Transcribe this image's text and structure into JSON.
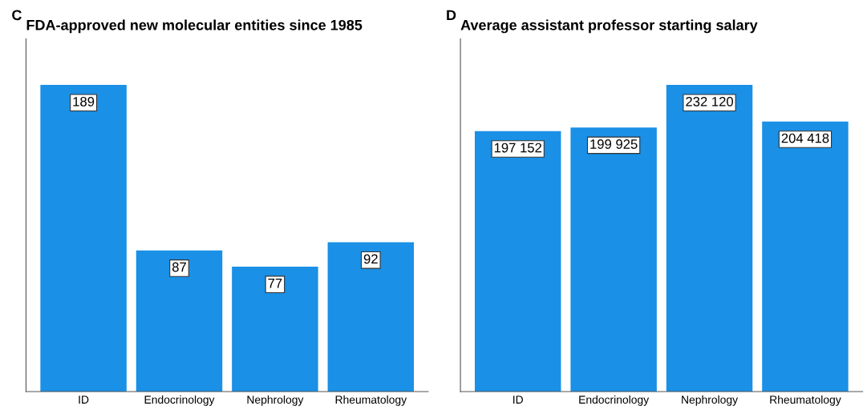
{
  "chart_data": [
    {
      "type": "bar",
      "title": "FDA-approved new molecular entities since 1985",
      "annotations": [
        "C"
      ],
      "categories": [
        "ID",
        "Endocrinology",
        "Nephrology",
        "Rheumatology"
      ],
      "values": [
        189,
        87,
        77,
        92
      ],
      "color": "#1a90e6",
      "data_labels": true,
      "tick_labels": "x",
      "grid": false,
      "legend": false
    },
    {
      "type": "bar",
      "title": "Average assistant professor starting salary",
      "annotations": [
        "D"
      ],
      "categories": [
        "ID",
        "Endocrinology",
        "Nephrology",
        "Rheumatology"
      ],
      "values": [
        197152,
        199925,
        232120,
        204418
      ],
      "value_labels": [
        "197 152",
        "199 925",
        "232 120",
        "204 418"
      ],
      "color": "#1a90e6",
      "tick_labels": "x",
      "grid": false,
      "legend": false
    }
  ]
}
